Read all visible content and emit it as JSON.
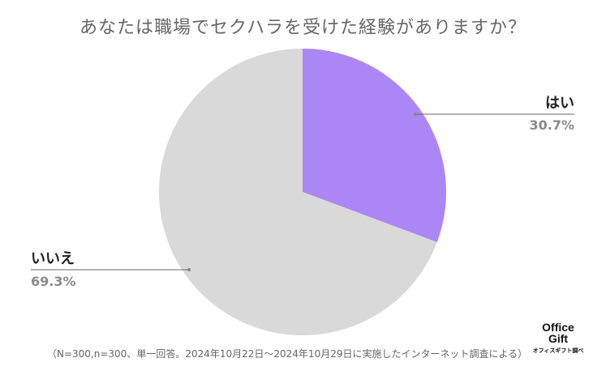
{
  "chart_data": {
    "type": "pie",
    "title": "あなたは職場でセクハラを受けた経験がありますか？",
    "categories": [
      "はい",
      "いいえ"
    ],
    "values": [
      30.7,
      69.3
    ],
    "value_labels": [
      "30.7%",
      "69.3%"
    ],
    "colors": [
      "#ab87f5",
      "#d9d9d9"
    ],
    "legend": "none",
    "start": "top, clockwise"
  },
  "footnote": "（N=300,n=300、単一回答。2024年10月22日〜2024年10月29日に実施したインターネット調査による）",
  "logo": {
    "line1": "Office",
    "line2": "Gift",
    "line3": "オフィスギフト調べ"
  }
}
